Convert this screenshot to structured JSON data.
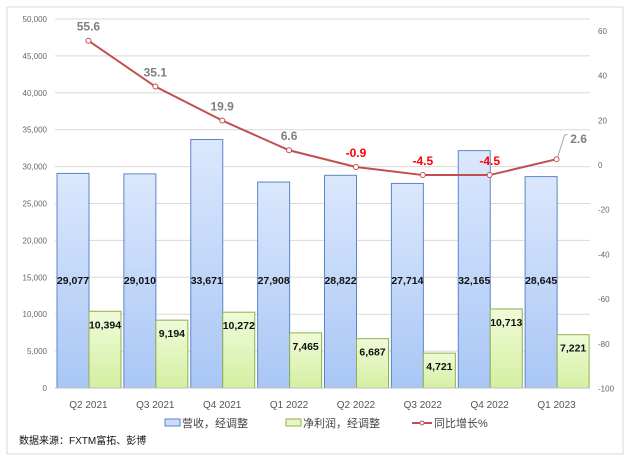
{
  "chart_data": {
    "type": "bar+line",
    "categories": [
      "Q2 2021",
      "Q3 2021",
      "Q4 2021",
      "Q1 2022",
      "Q2 2022",
      "Q3 2022",
      "Q4 2022",
      "Q1 2023"
    ],
    "series": [
      {
        "name": "营收，经调整",
        "type": "bar",
        "axis": "left",
        "values": [
          29077,
          29010,
          33671,
          27908,
          28822,
          27714,
          32165,
          28645
        ],
        "labels": [
          "29,077",
          "29,010",
          "33,671",
          "27,908",
          "28,822",
          "27,714",
          "32,165",
          "28,645"
        ],
        "color": "#c9dcfa"
      },
      {
        "name": "净利润，经调整",
        "type": "bar",
        "axis": "left",
        "values": [
          10394,
          9194,
          10272,
          7465,
          6687,
          4721,
          10713,
          7221
        ],
        "labels": [
          "10,394",
          "9,194",
          "10,272",
          "7,465",
          "6,687",
          "4,721",
          "10,713",
          "7,221"
        ],
        "color": "#e6f7c4"
      },
      {
        "name": "同比增长%",
        "type": "line",
        "axis": "right",
        "values": [
          55.6,
          35.1,
          19.9,
          6.6,
          -0.9,
          -4.5,
          -4.5,
          2.6
        ],
        "labels": [
          "55.6",
          "35.1",
          "19.9",
          "6.6",
          "-0.9",
          "-4.5",
          "-4.5",
          "2.6"
        ],
        "color": "#c0504d"
      }
    ],
    "left_axis": {
      "ylim": [
        0,
        50000
      ],
      "ticks": [
        "0",
        "5,000",
        "10,000",
        "15,000",
        "20,000",
        "25,000",
        "30,000",
        "35,000",
        "40,000",
        "45,000",
        "50,000"
      ]
    },
    "right_axis": {
      "ylim": [
        -100,
        60
      ],
      "ticks": [
        "-100",
        "-80",
        "-60",
        "-40",
        "-20",
        "0",
        "20",
        "40",
        "60"
      ]
    },
    "negative_label_color": "#ff0000",
    "positive_label_color": "#7f7f7f",
    "grid": true,
    "legend_position": "bottom"
  },
  "source": "数据来源：FXTM富拓、彭博"
}
